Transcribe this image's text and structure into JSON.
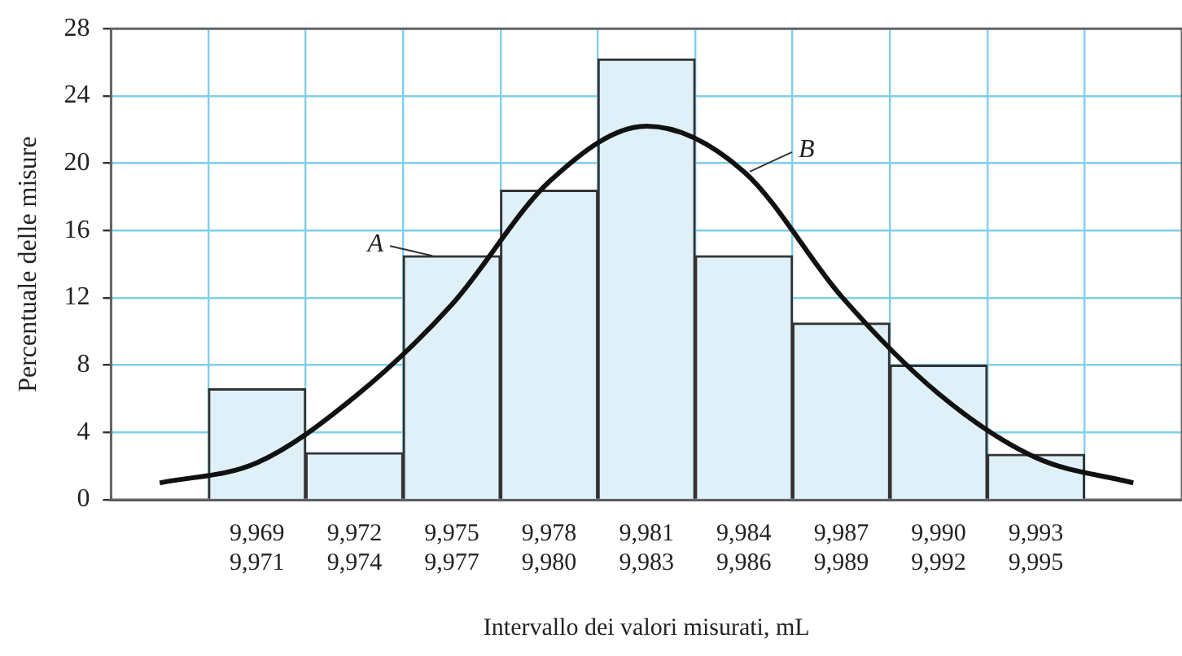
{
  "chart_data": {
    "type": "bar",
    "xlabel": "Intervallo dei valori misurati, mL",
    "ylabel": "Percentuale delle misure",
    "categories": [
      null,
      "9,969\n9,971",
      "9,972\n9,974",
      "9,975\n9,977",
      "9,978\n9,980",
      "9,981\n9,983",
      "9,984\n9,986",
      "9,987\n9,989",
      "9,990\n9,992",
      "9,993\n9,995",
      null
    ],
    "series": [
      {
        "color": "#dff0f8",
        "values": [
          null,
          6.6,
          2.8,
          14.5,
          18.4,
          26.2,
          14.5,
          10.5,
          8.0,
          2.7,
          null
        ]
      },
      {
        "type": "line",
        "color": "#111111",
        "values": [
          1.0,
          2.2,
          6.1,
          11.6,
          18.9,
          22.2,
          19.5,
          12.1,
          6.3,
          2.5,
          1.0
        ]
      }
    ],
    "ylim": [
      0,
      28
    ],
    "yticks": [
      0,
      4,
      8,
      12,
      16,
      20,
      24,
      28
    ],
    "grid": true,
    "legend": false,
    "marker": "none",
    "line_style": "solid",
    "annotations": [
      {
        "text": "A",
        "x": "9,975\n9,977",
        "y": 14.5
      },
      {
        "text": "B",
        "x": "9,984\n9,986",
        "y": 19.5
      }
    ]
  }
}
